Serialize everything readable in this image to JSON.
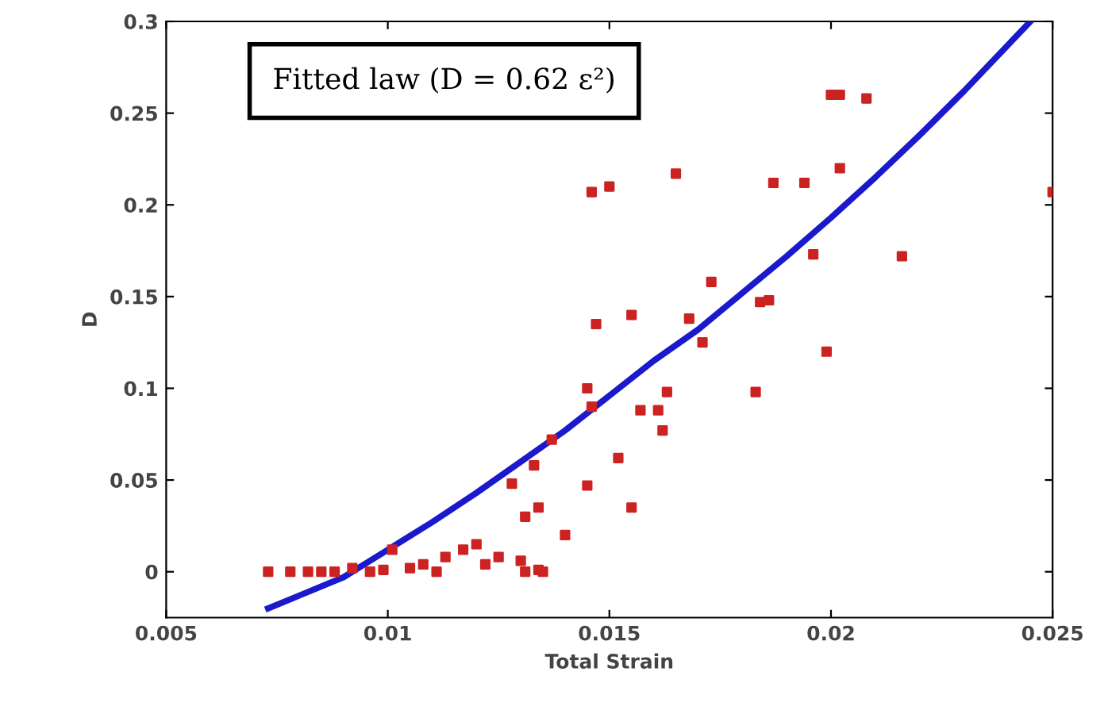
{
  "chart_data": {
    "type": "scatter",
    "xlabel": "Total Strain",
    "ylabel": "D",
    "xlim": [
      0.005,
      0.025
    ],
    "ylim": [
      -0.025,
      0.3
    ],
    "xticks": [
      0.005,
      0.01,
      0.015,
      0.02,
      0.025
    ],
    "yticks": [
      0,
      0.05,
      0.1,
      0.15,
      0.2,
      0.25,
      0.3
    ],
    "grid": false,
    "legend": false,
    "annotations": [
      "Fitted law (D = 0.62 ε²)"
    ],
    "series": [
      {
        "color": "#cc2222",
        "marker": "square",
        "x": [
          0.0073,
          0.0078,
          0.0082,
          0.0085,
          0.0088,
          0.0092,
          0.0096,
          0.0099,
          0.0101,
          0.0105,
          0.0108,
          0.0111,
          0.0113,
          0.0117,
          0.012,
          0.0122,
          0.0125,
          0.013,
          0.0131,
          0.0134,
          0.0135,
          0.0131,
          0.0134,
          0.0128,
          0.0133,
          0.0137,
          0.014,
          0.0145,
          0.0145,
          0.0146,
          0.0147,
          0.0146,
          0.015,
          0.0152,
          0.0155,
          0.0155,
          0.0157,
          0.0161,
          0.0162,
          0.0163,
          0.0165,
          0.0168,
          0.0171,
          0.0173,
          0.0183,
          0.0184,
          0.0186,
          0.0187,
          0.0194,
          0.0196,
          0.0199,
          0.02,
          0.0202,
          0.0202,
          0.0208,
          0.0216,
          0.025
        ],
        "values": [
          0,
          0,
          0,
          0,
          0,
          0.002,
          0,
          0.001,
          0.012,
          0.002,
          0.004,
          0,
          0.008,
          0.012,
          0.015,
          0.004,
          0.008,
          0.006,
          0,
          0.001,
          0,
          0.03,
          0.035,
          0.048,
          0.058,
          0.072,
          0.02,
          0.047,
          0.1,
          0.09,
          0.135,
          0.207,
          0.21,
          0.062,
          0.14,
          0.035,
          0.088,
          0.088,
          0.077,
          0.098,
          0.217,
          0.138,
          0.125,
          0.158,
          0.098,
          0.147,
          0.148,
          0.212,
          0.212,
          0.173,
          0.12,
          0.26,
          0.26,
          0.22,
          0.258,
          0.172,
          0.207
        ]
      },
      {
        "type": "line",
        "color": "#1a1acc",
        "marker": "none",
        "line_style": "solid",
        "x": [
          0.0073,
          0.008,
          0.009,
          0.01,
          0.011,
          0.012,
          0.013,
          0.014,
          0.015,
          0.016,
          0.017,
          0.018,
          0.019,
          0.02,
          0.021,
          0.022,
          0.023,
          0.0245
        ],
        "values": [
          -0.02,
          -0.013,
          -0.003,
          0.012,
          0.027,
          0.043,
          0.06,
          0.077,
          0.096,
          0.115,
          0.132,
          0.152,
          0.172,
          0.193,
          0.215,
          0.238,
          0.262,
          0.3
        ]
      }
    ]
  }
}
